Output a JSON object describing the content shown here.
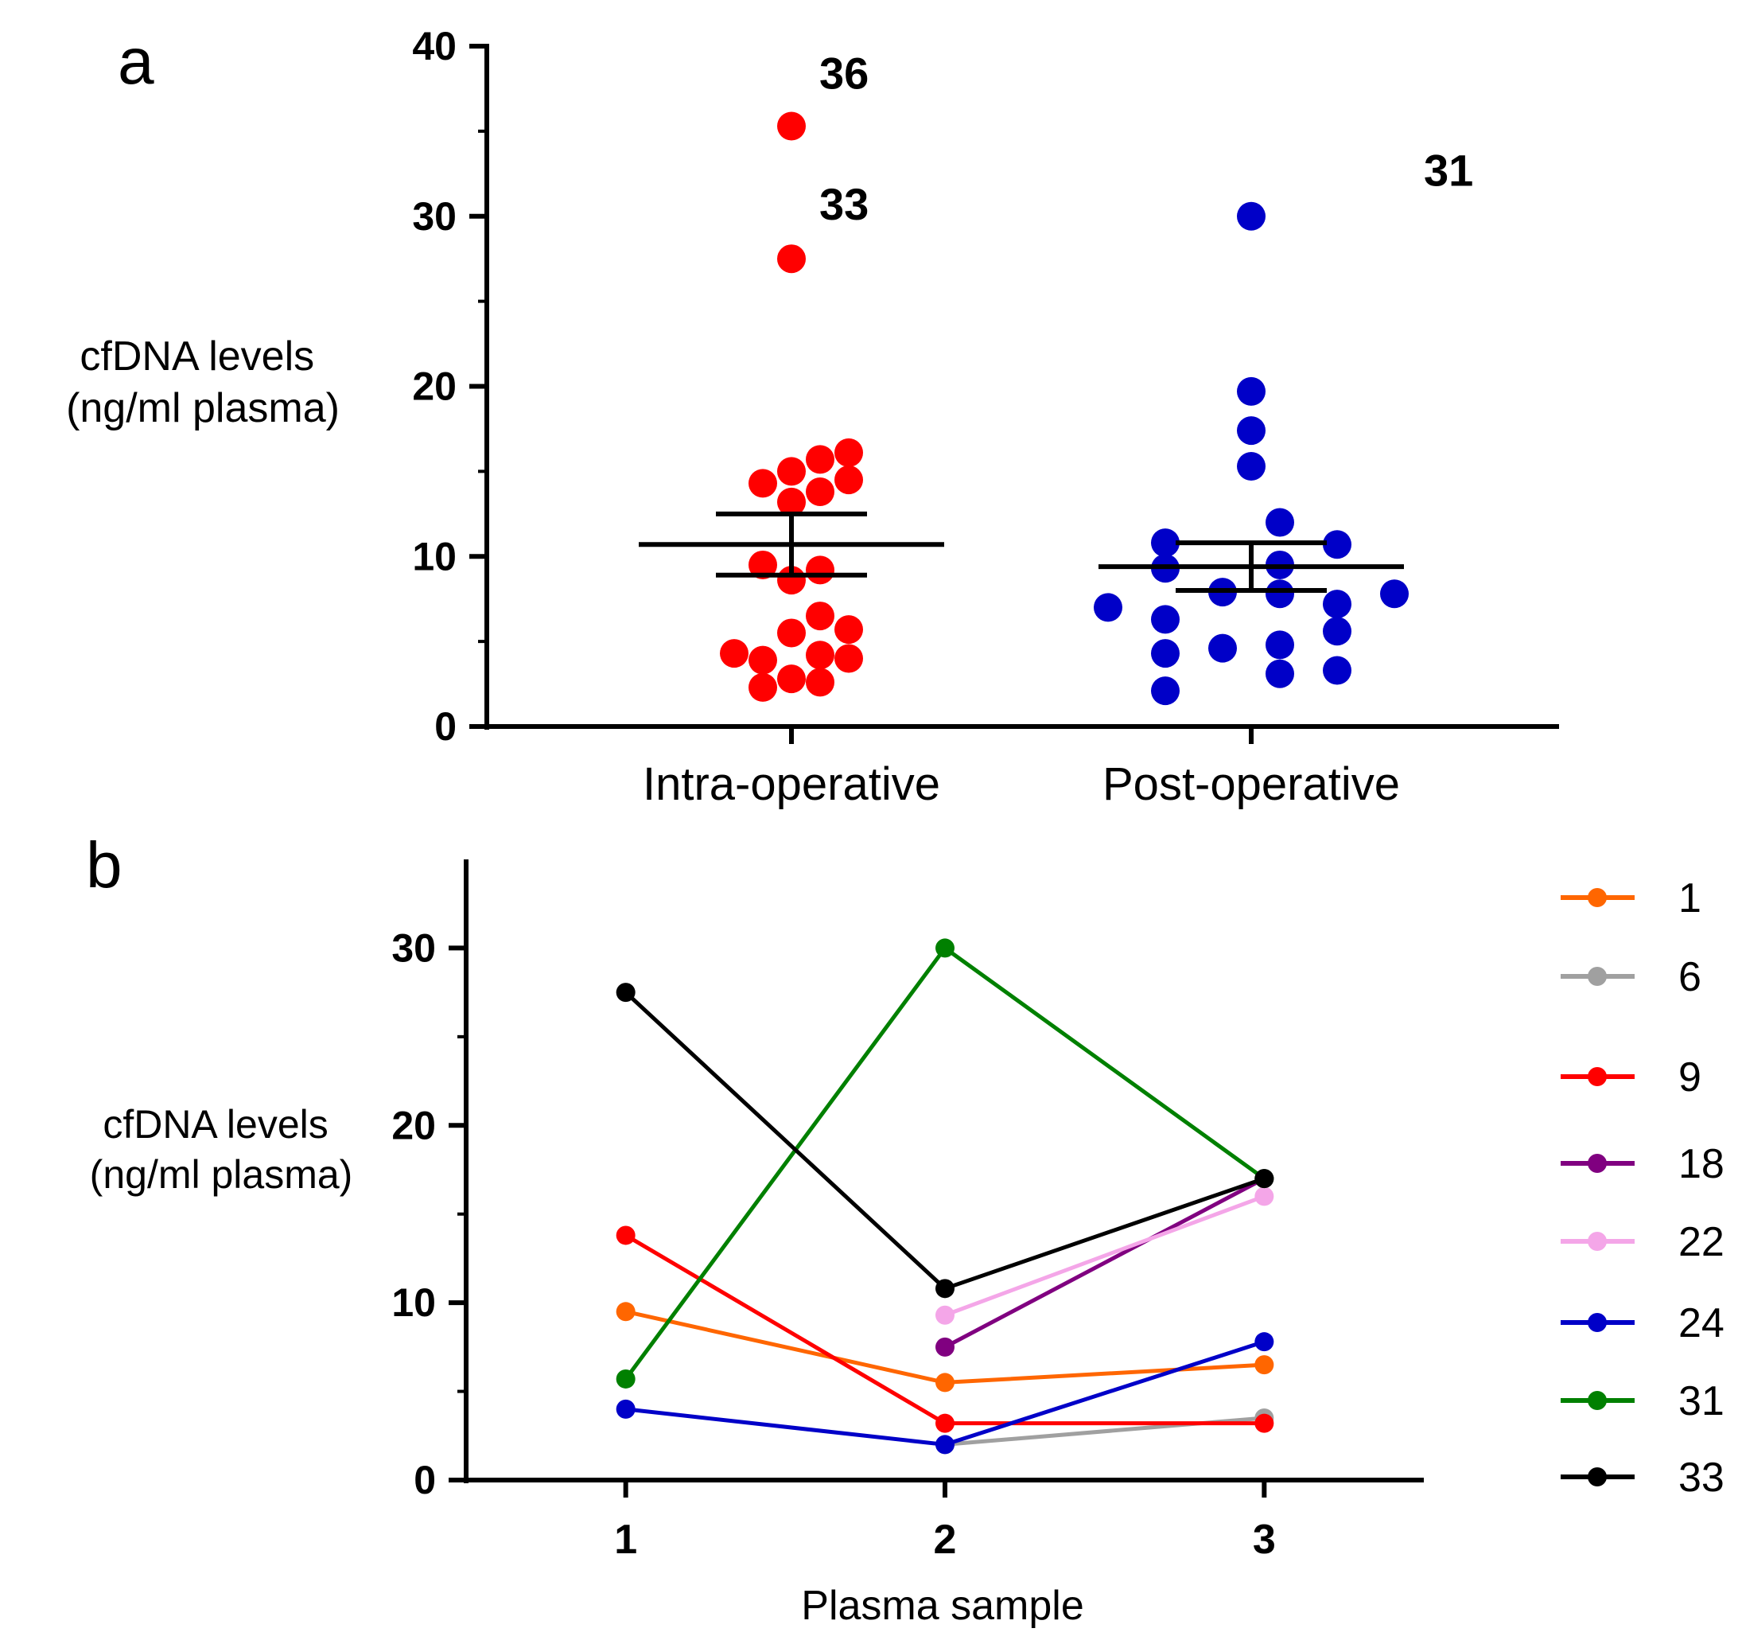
{
  "chart_data": [
    {
      "panel_label": "a",
      "type": "scatter",
      "ylabel_lines": [
        "cfDNA levels",
        "(ng/ml plasma)"
      ],
      "xlabel": "",
      "categories": [
        "Intra-operative",
        "Post-operative"
      ],
      "ylim": [
        0,
        40
      ],
      "yticks": [
        0,
        10,
        20,
        30,
        40
      ],
      "grid": false,
      "colors": {
        "Intra-operative": "#ff0000",
        "Post-operative": "#0000c8"
      },
      "series": [
        {
          "category": "Intra-operative",
          "points": [
            {
              "xo": 0,
              "y": 35.3
            },
            {
              "xo": 0,
              "y": 27.5
            },
            {
              "xo": -0.5,
              "y": 14.3
            },
            {
              "xo": 0,
              "y": 15.0
            },
            {
              "xo": 0.5,
              "y": 15.7
            },
            {
              "xo": 1,
              "y": 16.1
            },
            {
              "xo": 0,
              "y": 13.2
            },
            {
              "xo": 0.5,
              "y": 13.8
            },
            {
              "xo": 1,
              "y": 14.5
            },
            {
              "xo": -0.5,
              "y": 9.5
            },
            {
              "xo": 0.5,
              "y": 9.2
            },
            {
              "xo": 0,
              "y": 8.6
            },
            {
              "xo": 0,
              "y": 5.5
            },
            {
              "xo": 0.5,
              "y": 6.5
            },
            {
              "xo": 1,
              "y": 5.7
            },
            {
              "xo": -1,
              "y": 4.3
            },
            {
              "xo": -0.5,
              "y": 3.9
            },
            {
              "xo": 0.5,
              "y": 4.2
            },
            {
              "xo": 1,
              "y": 4.0
            },
            {
              "xo": -0.5,
              "y": 2.3
            },
            {
              "xo": 0,
              "y": 2.8
            },
            {
              "xo": 0.5,
              "y": 2.6
            }
          ],
          "mean": 10.7,
          "sem_low": 8.9,
          "sem_high": 12.5
        },
        {
          "category": "Post-operative",
          "points": [
            {
              "xo": 0,
              "y": 30.0
            },
            {
              "xo": 0,
              "y": 19.7
            },
            {
              "xo": 0,
              "y": 17.4
            },
            {
              "xo": 0,
              "y": 15.3
            },
            {
              "xo": 0.5,
              "y": 12.0
            },
            {
              "xo": -1.5,
              "y": 10.8
            },
            {
              "xo": 1.5,
              "y": 10.7
            },
            {
              "xo": -1.5,
              "y": 9.3
            },
            {
              "xo": 0.5,
              "y": 9.5
            },
            {
              "xo": 2.5,
              "y": 7.8
            },
            {
              "xo": -0.5,
              "y": 7.9
            },
            {
              "xo": 0.5,
              "y": 7.8
            },
            {
              "xo": 1.5,
              "y": 7.2
            },
            {
              "xo": -2.5,
              "y": 7.0
            },
            {
              "xo": -1.5,
              "y": 6.3
            },
            {
              "xo": 1.5,
              "y": 5.6
            },
            {
              "xo": -0.5,
              "y": 4.6
            },
            {
              "xo": 0.5,
              "y": 4.8
            },
            {
              "xo": -1.5,
              "y": 4.3
            },
            {
              "xo": 0.5,
              "y": 3.1
            },
            {
              "xo": 1.5,
              "y": 3.3
            },
            {
              "xo": -1.5,
              "y": 2.1
            }
          ],
          "mean": 9.4,
          "sem_low": 8.0,
          "sem_high": 10.8
        }
      ],
      "annotations": [
        {
          "text": "36",
          "category": "Intra-operative",
          "y": 37.5
        },
        {
          "text": "33",
          "category": "Intra-operative",
          "y": 29.8
        },
        {
          "text": "31",
          "category": "Post-operative",
          "y": 31.8
        }
      ]
    },
    {
      "panel_label": "b",
      "type": "line",
      "ylabel_lines": [
        "cfDNA levels",
        "(ng/ml plasma)"
      ],
      "xlabel": "Plasma sample",
      "x": [
        1,
        2,
        3
      ],
      "xlim": [
        0.5,
        3.5
      ],
      "ylim": [
        0,
        35
      ],
      "yticks": [
        0,
        10,
        20,
        30
      ],
      "grid": false,
      "legend_position": "right",
      "series": [
        {
          "name": "1",
          "color": "#ff6600",
          "values": [
            9.5,
            5.5,
            6.5
          ]
        },
        {
          "name": "6",
          "color": "#a0a0a0",
          "values": [
            null,
            2.0,
            3.5
          ]
        },
        {
          "name": "9",
          "color": "#ff0000",
          "values": [
            13.8,
            3.2,
            3.2
          ]
        },
        {
          "name": "18",
          "color": "#800080",
          "values": [
            null,
            7.5,
            17.0
          ]
        },
        {
          "name": "22",
          "color": "#f4a6e8",
          "values": [
            null,
            9.3,
            16.0
          ]
        },
        {
          "name": "24",
          "color": "#0000c8",
          "values": [
            4.0,
            2.0,
            7.8
          ]
        },
        {
          "name": "31",
          "color": "#008000",
          "values": [
            5.7,
            30.0,
            17.0
          ]
        },
        {
          "name": "33",
          "color": "#000000",
          "values": [
            27.5,
            10.8,
            17.0
          ]
        }
      ]
    }
  ]
}
